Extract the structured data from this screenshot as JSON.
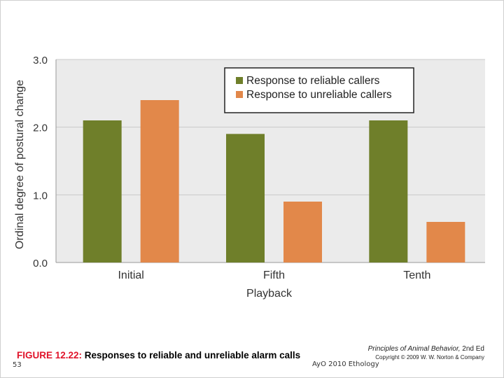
{
  "chart_data": {
    "type": "bar",
    "categories": [
      "Initial",
      "Fifth",
      "Tenth"
    ],
    "series": [
      {
        "name": "Response to reliable callers",
        "color": "#6f7f2a",
        "values": [
          2.1,
          1.9,
          2.1
        ]
      },
      {
        "name": "Response to unreliable callers",
        "color": "#e2884a",
        "values": [
          2.4,
          0.9,
          0.6
        ]
      }
    ],
    "title": "",
    "xlabel": "Playback",
    "ylabel": "Ordinal degree of postural change",
    "ylim": [
      0,
      3
    ],
    "yticks": [
      "0.0",
      "1.0",
      "2.0",
      "3.0"
    ],
    "grid": true,
    "legend_position": "top-right",
    "plot_background": "#ebebeb"
  },
  "caption": {
    "figure_number": "FIGURE 12.22:",
    "text": "Responses to reliable and unreliable alarm calls"
  },
  "credit": {
    "book_title": "Principles of Animal Behavior,",
    "edition": "2nd Ed",
    "copyright": "Copyright © 2009 W. W. Norton & Company"
  },
  "slide": {
    "number": "53",
    "footer": "AyO 2010 Ethology"
  }
}
